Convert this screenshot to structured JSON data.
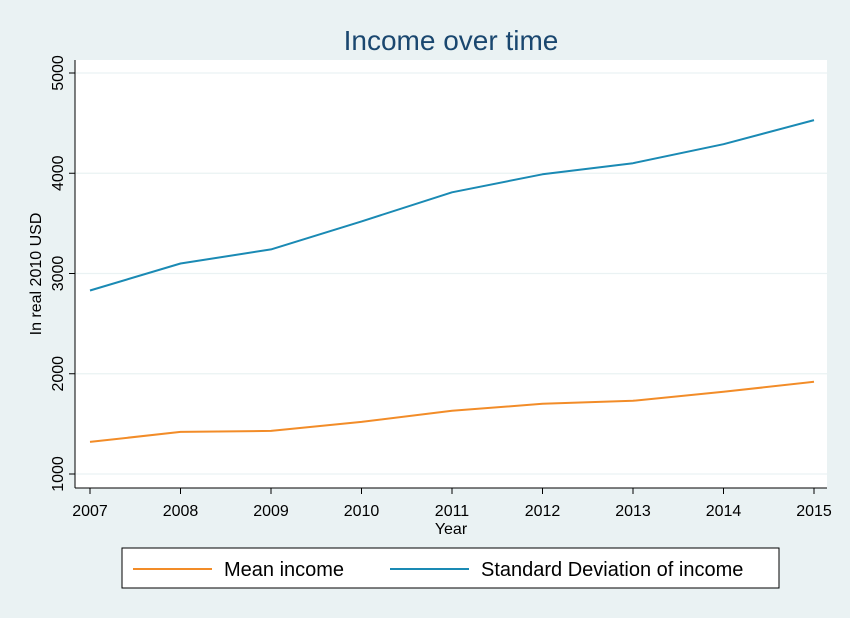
{
  "chart_data": {
    "type": "line",
    "title": "Income over time",
    "xlabel": "Year",
    "ylabel": "In real 2010 USD",
    "x": [
      2007,
      2008,
      2009,
      2010,
      2011,
      2012,
      2013,
      2014,
      2015
    ],
    "xticks": [
      "2007",
      "2008",
      "2009",
      "2010",
      "2011",
      "2012",
      "2013",
      "2014",
      "2015"
    ],
    "yticks": [
      "1000",
      "2000",
      "3000",
      "4000",
      "5000"
    ],
    "ylim": [
      1000,
      5000
    ],
    "xlim": [
      2007,
      2015
    ],
    "grid": true,
    "legend_position": "bottom",
    "colors": {
      "background": "#eaf2f3",
      "plot": "#ffffff",
      "title": "#1a476f",
      "grid": "#eaf2f3"
    },
    "series": [
      {
        "name": "Mean income",
        "color": "#f28c28",
        "values": [
          1320,
          1420,
          1430,
          1520,
          1630,
          1700,
          1730,
          1820,
          1920
        ]
      },
      {
        "name": "Standard Deviation of income",
        "color": "#1a8ab4",
        "values": [
          2830,
          3100,
          3240,
          3520,
          3810,
          3990,
          4100,
          4290,
          4530
        ]
      }
    ]
  }
}
